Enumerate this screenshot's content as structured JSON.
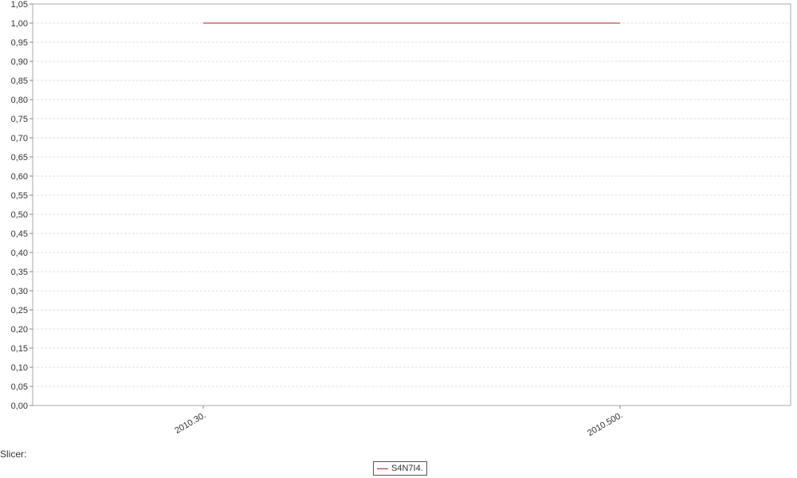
{
  "chart_data": {
    "type": "line",
    "categories": [
      "2010.30.",
      "2010.500."
    ],
    "series": [
      {
        "name": "S4N7I4.",
        "values": [
          1.0,
          1.0
        ],
        "color": "#b22222"
      }
    ],
    "ylim": [
      0,
      1.05
    ],
    "yticks": [
      "0,00",
      "0,05",
      "0,10",
      "0,15",
      "0,20",
      "0,25",
      "0,30",
      "0,35",
      "0,40",
      "0,45",
      "0,50",
      "0,55",
      "0,60",
      "0,65",
      "0,70",
      "0,75",
      "0,80",
      "0,85",
      "0,90",
      "0,95",
      "1,00",
      "1,05"
    ],
    "grid": true,
    "legend_position": "bottom-center"
  },
  "slicer_label": "Slicer:"
}
